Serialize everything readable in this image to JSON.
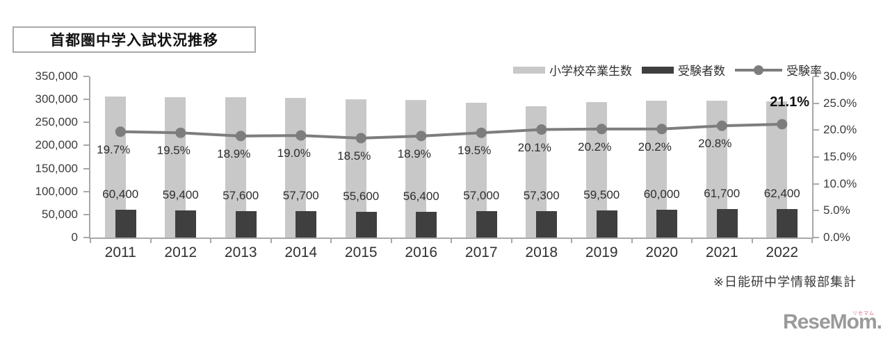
{
  "page": {
    "title": "首都圏中学入試状況推移",
    "note": "※日能研中学情報部集計",
    "logo": {
      "text": "ReseMom",
      "suffix": ".",
      "ruby": "リセマム"
    }
  },
  "chart_data": {
    "type": "bar",
    "subtype": "combo-bar-line",
    "title": "首都圏中学入試状況推移",
    "categories": [
      "2011",
      "2012",
      "2013",
      "2014",
      "2015",
      "2016",
      "2017",
      "2018",
      "2019",
      "2020",
      "2021",
      "2022"
    ],
    "series": [
      {
        "name": "小学校卒業生数",
        "type": "bar",
        "axis": "left",
        "color": "#c8c8c8",
        "values_estimated": [
          306600,
          304600,
          304800,
          303700,
          300500,
          298400,
          292300,
          285100,
          294600,
          297000,
          296600,
          295700
        ],
        "labels_shown": false
      },
      {
        "name": "受験者数",
        "type": "bar",
        "axis": "left",
        "color": "#3f3f3f",
        "values": [
          60400,
          59400,
          57600,
          57700,
          55600,
          56400,
          57000,
          57300,
          59500,
          60000,
          61700,
          62400
        ],
        "labels": [
          "60,400",
          "59,400",
          "57,600",
          "57,700",
          "55,600",
          "56,400",
          "57,000",
          "57,300",
          "59,500",
          "60,000",
          "61,700",
          "62,400"
        ]
      },
      {
        "name": "受験率",
        "type": "line",
        "axis": "right",
        "color": "#7d7d7d",
        "values_pct": [
          19.7,
          19.5,
          18.9,
          19.0,
          18.5,
          18.9,
          19.5,
          20.1,
          20.2,
          20.2,
          20.8,
          21.1
        ],
        "labels": [
          "19.7%",
          "19.5%",
          "18.9%",
          "19.0%",
          "18.5%",
          "18.9%",
          "19.5%",
          "20.1%",
          "20.2%",
          "20.2%",
          "20.8%",
          "21.1%"
        ],
        "last_label_bold": true
      }
    ],
    "left_axis": {
      "min": 0,
      "max": 350000,
      "step": 50000,
      "ticks": [
        "350,000",
        "300,000",
        "250,000",
        "200,000",
        "150,000",
        "100,000",
        "50,000",
        "0"
      ]
    },
    "right_axis": {
      "min": 0,
      "max": 30,
      "step": 5,
      "ticks": [
        "30.0%",
        "25.0%",
        "20.0%",
        "15.0%",
        "10.0%",
        "5.0%",
        "0.0%"
      ]
    },
    "legend_position": "top-right",
    "grid": false,
    "axis_color": "#a8a8a8"
  }
}
